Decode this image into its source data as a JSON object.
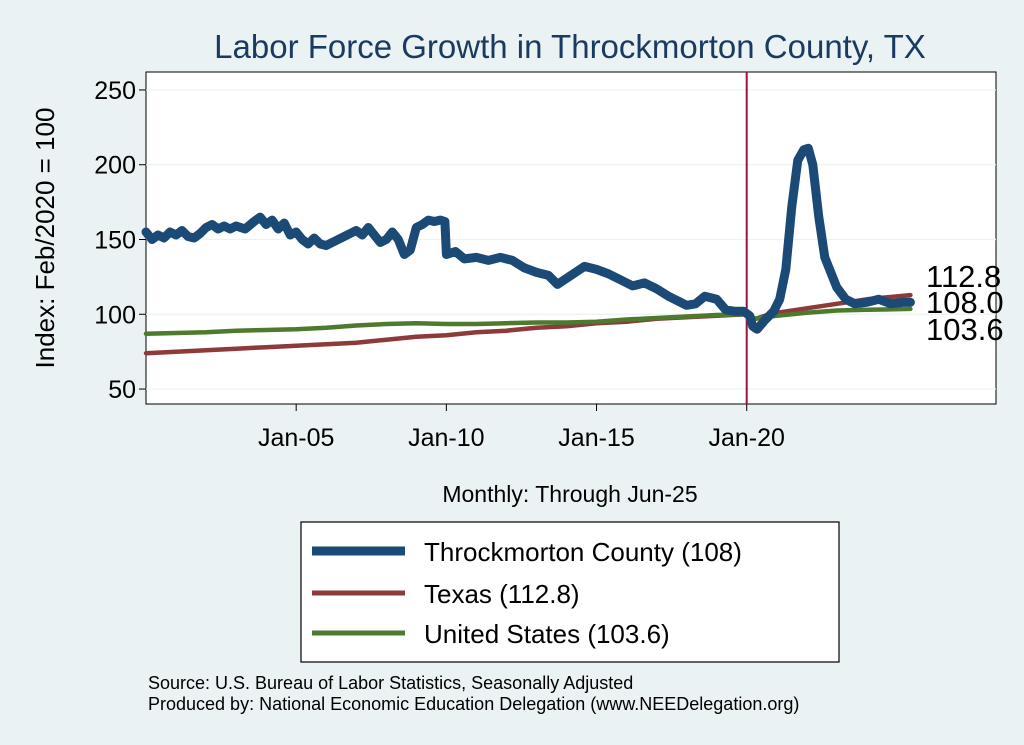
{
  "chart_data": {
    "type": "line",
    "title": "Labor Force Growth in Throckmorton  County, TX",
    "ylabel": "Index: Feb/2020 = 100",
    "xlabel": "Monthly: Through Jun-25",
    "ylim": [
      40,
      262
    ],
    "xlim": [
      2000.0,
      2028.3
    ],
    "yticks": [
      50,
      100,
      150,
      200,
      250
    ],
    "xticks": [
      {
        "label": "Jan-05",
        "x": 2005.0
      },
      {
        "label": "Jan-10",
        "x": 2010.0
      },
      {
        "label": "Jan-15",
        "x": 2015.0
      },
      {
        "label": "Jan-20",
        "x": 2020.0
      }
    ],
    "reference_line_x": 2020.0,
    "series": [
      {
        "name": "Throckmorton  County",
        "legend": "Throckmorton  County (108)",
        "end_label": "108.0",
        "color": "#1a4a75",
        "points": [
          [
            2000.0,
            155
          ],
          [
            2000.2,
            150
          ],
          [
            2000.4,
            153
          ],
          [
            2000.6,
            151
          ],
          [
            2000.8,
            155
          ],
          [
            2001.0,
            153
          ],
          [
            2001.2,
            156
          ],
          [
            2001.4,
            152
          ],
          [
            2001.6,
            151
          ],
          [
            2001.8,
            154
          ],
          [
            2002.0,
            158
          ],
          [
            2002.2,
            160
          ],
          [
            2002.4,
            157
          ],
          [
            2002.6,
            159
          ],
          [
            2002.8,
            157
          ],
          [
            2003.0,
            159
          ],
          [
            2003.3,
            157
          ],
          [
            2003.6,
            162
          ],
          [
            2003.8,
            165
          ],
          [
            2004.0,
            160
          ],
          [
            2004.2,
            163
          ],
          [
            2004.4,
            157
          ],
          [
            2004.6,
            161
          ],
          [
            2004.8,
            153
          ],
          [
            2005.0,
            155
          ],
          [
            2005.2,
            150
          ],
          [
            2005.4,
            147
          ],
          [
            2005.6,
            151
          ],
          [
            2005.8,
            147
          ],
          [
            2006.0,
            146
          ],
          [
            2006.2,
            148
          ],
          [
            2006.4,
            150
          ],
          [
            2006.6,
            152
          ],
          [
            2006.8,
            154
          ],
          [
            2007.0,
            156
          ],
          [
            2007.2,
            153
          ],
          [
            2007.4,
            158
          ],
          [
            2007.6,
            153
          ],
          [
            2007.8,
            148
          ],
          [
            2008.0,
            150
          ],
          [
            2008.2,
            155
          ],
          [
            2008.4,
            150
          ],
          [
            2008.6,
            140
          ],
          [
            2008.8,
            143
          ],
          [
            2009.0,
            158
          ],
          [
            2009.2,
            160
          ],
          [
            2009.4,
            163
          ],
          [
            2009.6,
            162
          ],
          [
            2009.8,
            163
          ],
          [
            2009.95,
            162
          ],
          [
            2010.0,
            140
          ],
          [
            2010.3,
            142
          ],
          [
            2010.6,
            137
          ],
          [
            2011.0,
            138
          ],
          [
            2011.4,
            136
          ],
          [
            2011.8,
            138
          ],
          [
            2012.2,
            136
          ],
          [
            2012.6,
            131
          ],
          [
            2013.0,
            128
          ],
          [
            2013.4,
            126
          ],
          [
            2013.7,
            120
          ],
          [
            2014.0,
            124
          ],
          [
            2014.3,
            128
          ],
          [
            2014.6,
            132
          ],
          [
            2015.0,
            130
          ],
          [
            2015.4,
            127
          ],
          [
            2015.8,
            123
          ],
          [
            2016.2,
            119
          ],
          [
            2016.6,
            121
          ],
          [
            2017.0,
            117
          ],
          [
            2017.4,
            112
          ],
          [
            2017.8,
            108
          ],
          [
            2018.0,
            106
          ],
          [
            2018.3,
            107
          ],
          [
            2018.6,
            112
          ],
          [
            2019.0,
            110
          ],
          [
            2019.3,
            103
          ],
          [
            2019.6,
            102
          ],
          [
            2019.9,
            102
          ],
          [
            2020.1,
            99
          ],
          [
            2020.2,
            92
          ],
          [
            2020.35,
            90
          ],
          [
            2020.6,
            96
          ],
          [
            2020.9,
            102
          ],
          [
            2021.1,
            110
          ],
          [
            2021.3,
            130
          ],
          [
            2021.5,
            172
          ],
          [
            2021.7,
            203
          ],
          [
            2021.9,
            210
          ],
          [
            2022.05,
            211
          ],
          [
            2022.2,
            200
          ],
          [
            2022.4,
            165
          ],
          [
            2022.6,
            138
          ],
          [
            2022.8,
            128
          ],
          [
            2023.0,
            118
          ],
          [
            2023.3,
            110
          ],
          [
            2023.6,
            107
          ],
          [
            2024.0,
            108
          ],
          [
            2024.4,
            110
          ],
          [
            2024.8,
            107
          ],
          [
            2025.2,
            108
          ],
          [
            2025.45,
            108
          ]
        ]
      },
      {
        "name": "Texas",
        "legend": "Texas (112.8)",
        "end_label": "112.8",
        "color": "#8e3a3a",
        "points": [
          [
            2000.0,
            74
          ],
          [
            2001.0,
            75
          ],
          [
            2002.0,
            76
          ],
          [
            2003.0,
            77
          ],
          [
            2004.0,
            78
          ],
          [
            2005.0,
            79
          ],
          [
            2006.0,
            80
          ],
          [
            2007.0,
            81
          ],
          [
            2008.0,
            83
          ],
          [
            2009.0,
            85
          ],
          [
            2010.0,
            86
          ],
          [
            2011.0,
            88
          ],
          [
            2012.0,
            89
          ],
          [
            2013.0,
            91
          ],
          [
            2014.0,
            92
          ],
          [
            2015.0,
            94
          ],
          [
            2016.0,
            95
          ],
          [
            2017.0,
            97
          ],
          [
            2018.0,
            98
          ],
          [
            2019.0,
            99
          ],
          [
            2020.0,
            100
          ],
          [
            2020.3,
            97
          ],
          [
            2020.6,
            99
          ],
          [
            2021.0,
            101
          ],
          [
            2022.0,
            104
          ],
          [
            2023.0,
            107
          ],
          [
            2024.0,
            110
          ],
          [
            2025.45,
            112.8
          ]
        ]
      },
      {
        "name": "United States",
        "legend": "United States (103.6)",
        "end_label": "103.6",
        "color": "#4d7a2c",
        "points": [
          [
            2000.0,
            87
          ],
          [
            2001.0,
            87.5
          ],
          [
            2002.0,
            88
          ],
          [
            2003.0,
            89
          ],
          [
            2004.0,
            89.5
          ],
          [
            2005.0,
            90
          ],
          [
            2006.0,
            91
          ],
          [
            2007.0,
            92.5
          ],
          [
            2008.0,
            93.5
          ],
          [
            2009.0,
            94
          ],
          [
            2010.0,
            93.5
          ],
          [
            2011.0,
            93.5
          ],
          [
            2012.0,
            94
          ],
          [
            2013.0,
            94.5
          ],
          [
            2014.0,
            94.5
          ],
          [
            2015.0,
            95
          ],
          [
            2016.0,
            96.5
          ],
          [
            2017.0,
            97.5
          ],
          [
            2018.0,
            98.5
          ],
          [
            2019.0,
            99.5
          ],
          [
            2020.0,
            100
          ],
          [
            2020.3,
            97
          ],
          [
            2020.6,
            98
          ],
          [
            2021.0,
            99
          ],
          [
            2022.0,
            101
          ],
          [
            2023.0,
            102.5
          ],
          [
            2024.0,
            103
          ],
          [
            2025.45,
            103.6
          ]
        ]
      }
    ]
  },
  "source": {
    "line1": "Source: U.S. Bureau of Labor Statistics, Seasonally Adjusted",
    "line2": "Produced by: National Economic Education Delegation (www.NEEDelegation.org)"
  }
}
